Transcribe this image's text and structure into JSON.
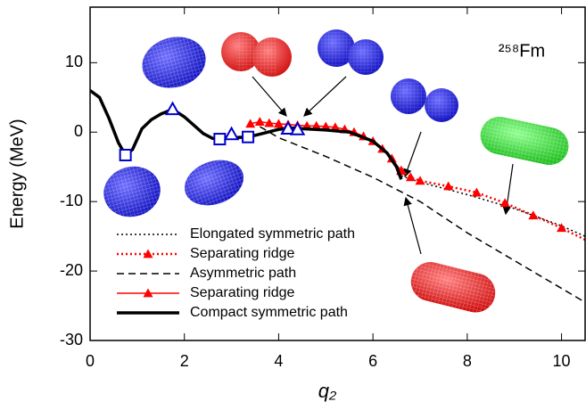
{
  "chart_data": {
    "type": "line",
    "x_label": "q₂",
    "y_label": "Energy (MeV)",
    "annotation": "²⁵⁸Fm",
    "xlim": [
      0,
      10.5
    ],
    "ylim": [
      -30,
      18
    ],
    "xticks": [
      0,
      2,
      4,
      6,
      8,
      10
    ],
    "yticks": [
      -30,
      -20,
      -10,
      0,
      10
    ],
    "legend": "lower-left",
    "series": [
      {
        "name": "Elongated symmetric path",
        "color": "#000000",
        "dash": "dotted",
        "marker": "none",
        "width": 1.5,
        "x": [
          6.6,
          7,
          8,
          9,
          10,
          10.5
        ],
        "values": [
          -6.3,
          -7.2,
          -9,
          -11,
          -13.5,
          -15
        ]
      },
      {
        "name": "Separating ridge",
        "color": "#ff0000",
        "dash": "dotted",
        "marker": "triangle",
        "width": 2.5,
        "x": [
          6.6,
          6.8,
          7.0,
          7.6,
          8.2,
          8.8,
          9.4,
          10,
          10.5
        ],
        "values": [
          -5.5,
          -6.5,
          -7,
          -7.8,
          -8.7,
          -10.2,
          -12,
          -13.8,
          -15.5
        ]
      },
      {
        "name": "Asymmetric path",
        "color": "#000000",
        "dash": "dashed",
        "marker": "none",
        "width": 1.5,
        "x": [
          3.6,
          4,
          5,
          6,
          7,
          8,
          9,
          10,
          10.5
        ],
        "values": [
          0.8,
          -0.8,
          -3.5,
          -6.5,
          -10,
          -14.5,
          -18.5,
          -22.5,
          -24.5
        ]
      },
      {
        "name": "Separating ridge",
        "color": "#ff0000",
        "dash": "solid",
        "marker": "triangle",
        "width": 1.5,
        "x": [
          3.4,
          3.6,
          3.8,
          4.0,
          4.2,
          4.4,
          4.6,
          4.8,
          5.0,
          5.2,
          5.4,
          5.6,
          5.8,
          6.0,
          6.2,
          6.4,
          6.6
        ],
        "values": [
          1.2,
          1.5,
          1.3,
          1.2,
          1.1,
          1.0,
          0.9,
          0.9,
          0.8,
          0.7,
          0.4,
          0,
          -0.6,
          -1.3,
          -2.4,
          -3.8,
          -5.6
        ]
      },
      {
        "name": "Compact symmetric path",
        "color": "#000000",
        "dash": "solid",
        "marker": "none",
        "width": 3.5,
        "x": [
          0,
          0.2,
          0.4,
          0.6,
          0.75,
          0.9,
          1.1,
          1.3,
          1.5,
          1.75,
          2,
          2.2,
          2.4,
          2.6,
          2.75,
          3,
          3.35,
          3.6,
          4,
          4.3,
          4.5,
          5,
          5.5,
          6,
          6.3,
          6.5,
          6.6
        ],
        "values": [
          6,
          5,
          2,
          -1.5,
          -3.3,
          -2.5,
          0.5,
          1.8,
          2.6,
          3.3,
          2.2,
          1,
          -0.2,
          -0.9,
          -1,
          -0.8,
          -0.7,
          -0.3,
          0.4,
          0.6,
          0.5,
          0.3,
          0,
          -1.3,
          -3,
          -5,
          -6.8
        ]
      }
    ],
    "points": [
      {
        "marker": "square",
        "color": "#0000cc",
        "x": 0.75,
        "y": -3.3
      },
      {
        "marker": "triangle",
        "color": "#0000cc",
        "x": 1.75,
        "y": 3.3
      },
      {
        "marker": "square",
        "color": "#0000cc",
        "x": 2.75,
        "y": -1
      },
      {
        "marker": "triangle",
        "color": "#0000cc",
        "x": 3.0,
        "y": -0.3
      },
      {
        "marker": "square",
        "color": "#0000cc",
        "x": 3.35,
        "y": -0.7
      },
      {
        "marker": "triangle",
        "color": "#0000cc",
        "x": 4.2,
        "y": 0.5
      },
      {
        "marker": "triangle",
        "color": "#0000cc",
        "x": 4.4,
        "y": 0.4
      }
    ]
  }
}
